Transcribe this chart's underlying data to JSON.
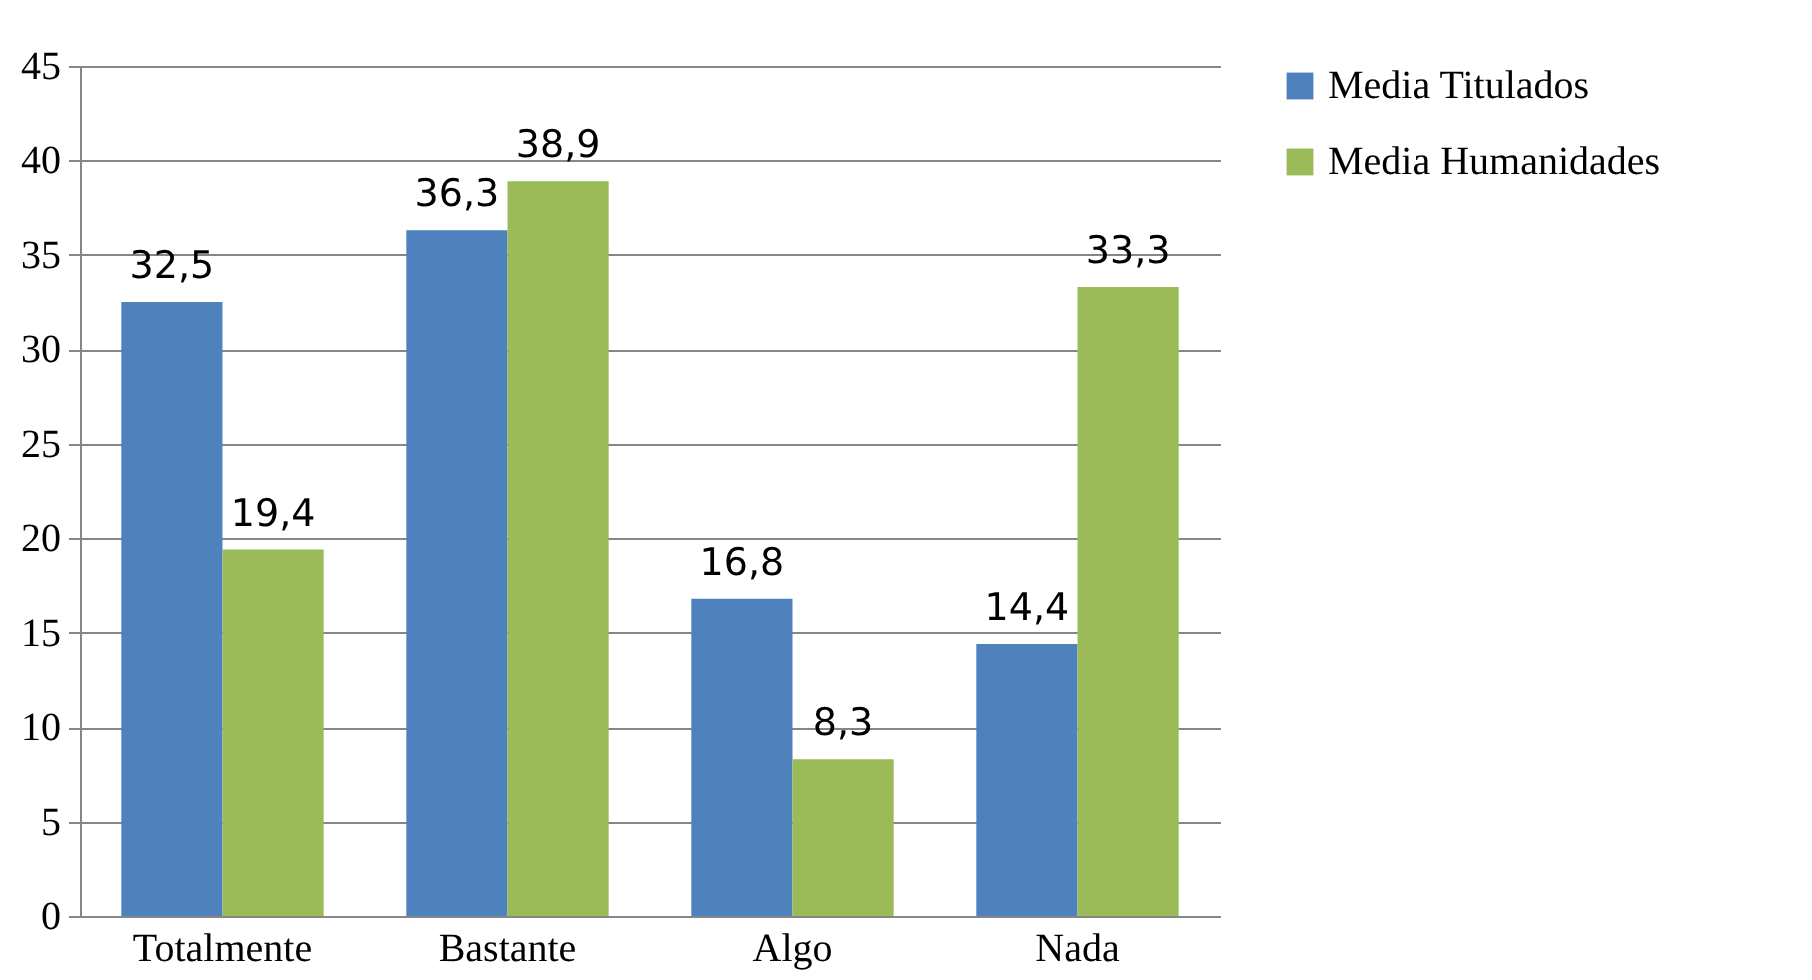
{
  "chart_data": {
    "type": "bar",
    "categories": [
      "Totalmente",
      "Bastante",
      "Algo",
      "Nada"
    ],
    "series": [
      {
        "name": "Media Titulados",
        "color": "#4f81bd",
        "values": [
          32.5,
          36.3,
          16.8,
          14.4
        ],
        "value_labels": [
          "32,5",
          "36,3",
          "16,8",
          "14,4"
        ]
      },
      {
        "name": "Media Humanidades",
        "color": "#9bbb59",
        "values": [
          19.4,
          38.9,
          8.3,
          33.3
        ],
        "value_labels": [
          "19,4",
          "38,9",
          "8,3",
          "33,3"
        ]
      }
    ],
    "ylim": [
      0,
      45
    ],
    "yticks": [
      0,
      5,
      10,
      15,
      20,
      25,
      30,
      35,
      40,
      45
    ],
    "grid": "y",
    "legend": "right"
  }
}
